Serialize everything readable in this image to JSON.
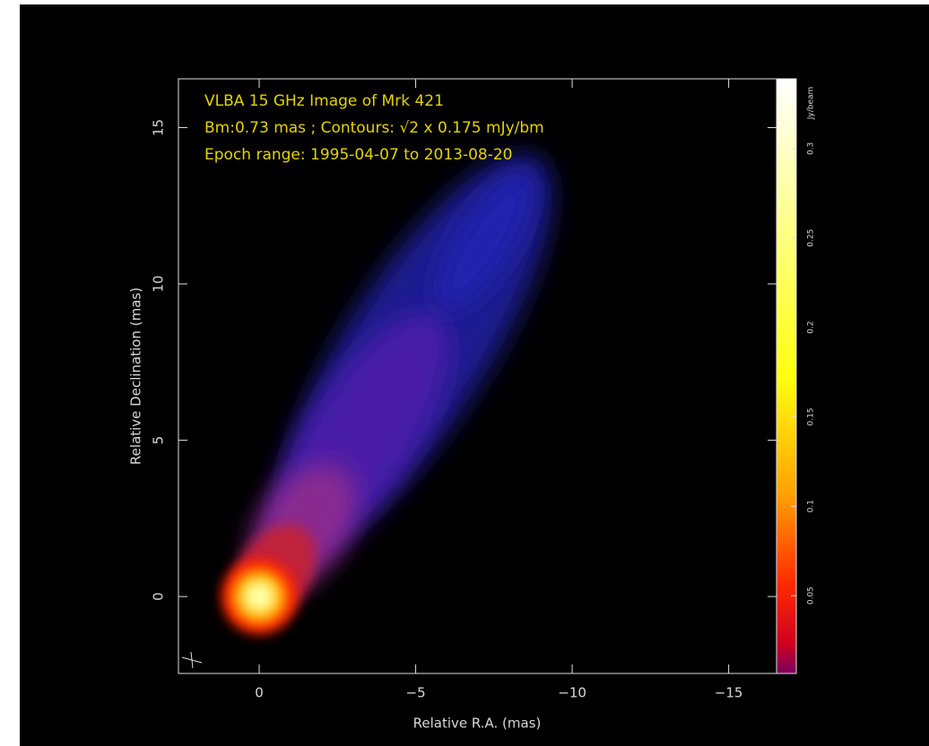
{
  "chart_data": {
    "type": "image",
    "title": "VLBA 15 GHz Image of Mrk 421",
    "subtitle": "Bm:0.73 mas ; Contours: √2 x 0.175 mJy/bm",
    "annotation": "Epoch range: 1995-04-07 to 2013-08-20",
    "x_label": "Relative R.A. (mas)",
    "y_label": "Relative Declination (mas)",
    "xlim": [
      2.58,
      -16.53
    ],
    "ylim": [
      -2.46,
      16.56
    ],
    "xticks": [
      0,
      {
        "value": -5,
        "label": "−5"
      },
      {
        "value": -10,
        "label": "−10"
      },
      {
        "value": -15,
        "label": "−15"
      }
    ],
    "yticks": [
      0,
      5,
      10,
      15
    ],
    "colorbar": {
      "label": "Jy/beam",
      "lim": [
        0.0065,
        0.339
      ],
      "ticks": [
        0.05,
        0.1,
        0.15,
        0.2,
        0.25,
        0.3
      ]
    }
  }
}
